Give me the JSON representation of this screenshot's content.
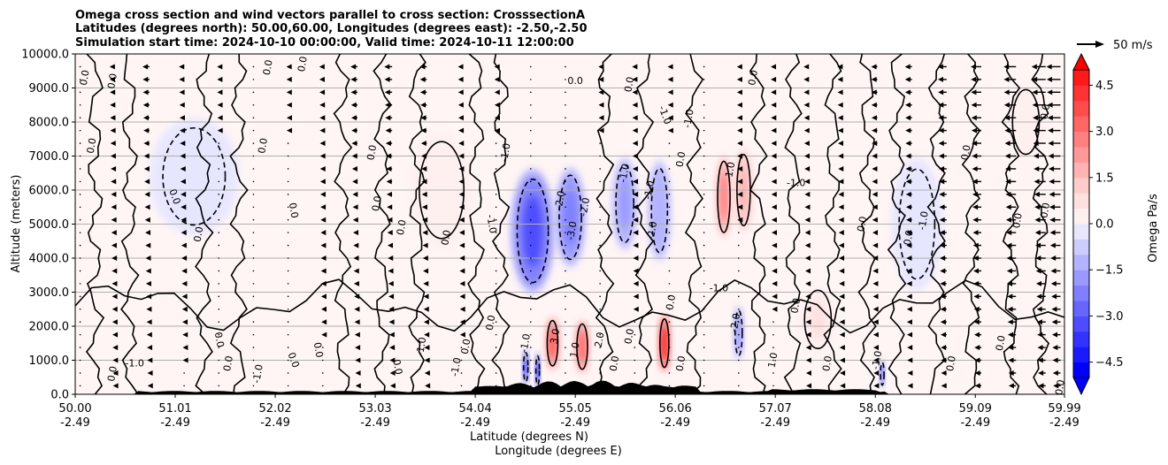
{
  "chart_data": {
    "type": "heatmap",
    "title_lines": [
      "Omega cross section and wind vectors parallel to cross section: CrosssectionA",
      "Latitudes (degrees north): 50.00,60.00, Longitudes (degrees east): -2.50,-2.50",
      "Simulation start time: 2024-10-10 00:00:00, Valid time: 2024-10-11 12:00:00"
    ],
    "ylabel": "Altitude (meters)",
    "xlabel_lat": "Latitude (degrees N)",
    "xlabel_lon": "Longitude (degrees E)",
    "ylim": [
      0,
      10000
    ],
    "xlim": [
      50.0,
      59.99
    ],
    "yticks": [
      {
        "value": 0,
        "label": "0.0"
      },
      {
        "value": 1000,
        "label": "1000.0"
      },
      {
        "value": 2000,
        "label": "2000.0"
      },
      {
        "value": 3000,
        "label": "3000.0"
      },
      {
        "value": 4000,
        "label": "4000.0"
      },
      {
        "value": 5000,
        "label": "5000.0"
      },
      {
        "value": 6000,
        "label": "6000.0"
      },
      {
        "value": 7000,
        "label": "7000.0"
      },
      {
        "value": 8000,
        "label": "8000.0"
      },
      {
        "value": 9000,
        "label": "9000.0"
      },
      {
        "value": 10000,
        "label": "10000.0"
      }
    ],
    "xticks": [
      {
        "value": 50.0,
        "lat": "50.00",
        "lon": "-2.49"
      },
      {
        "value": 51.01,
        "lat": "51.01",
        "lon": "-2.49"
      },
      {
        "value": 52.02,
        "lat": "52.02",
        "lon": "-2.49"
      },
      {
        "value": 53.03,
        "lat": "53.03",
        "lon": "-2.49"
      },
      {
        "value": 54.04,
        "lat": "54.04",
        "lon": "-2.49"
      },
      {
        "value": 55.05,
        "lat": "55.05",
        "lon": "-2.49"
      },
      {
        "value": 56.06,
        "lat": "56.06",
        "lon": "-2.49"
      },
      {
        "value": 57.07,
        "lat": "57.07",
        "lon": "-2.49"
      },
      {
        "value": 58.08,
        "lat": "58.08",
        "lon": "-2.49"
      },
      {
        "value": 59.09,
        "lat": "59.09",
        "lon": "-2.49"
      },
      {
        "value": 59.99,
        "lat": "59.99",
        "lon": "-2.49"
      }
    ],
    "colorbar": {
      "label": "Omega Pa/s",
      "range": [
        -5.0,
        5.0
      ],
      "ticks": [
        {
          "value": 4.5,
          "label": "4.5"
        },
        {
          "value": 3.0,
          "label": "3.0"
        },
        {
          "value": 1.5,
          "label": "1.5"
        },
        {
          "value": 0.0,
          "label": "0.0"
        },
        {
          "value": -1.5,
          "label": "−1.5"
        },
        {
          "value": -3.0,
          "label": "−3.0"
        },
        {
          "value": -4.5,
          "label": "−4.5"
        }
      ],
      "levels": [
        -5.0,
        -4.5,
        -4.0,
        -3.5,
        -3.0,
        -2.5,
        -2.0,
        -1.5,
        -1.0,
        -0.5,
        0.0,
        0.5,
        1.0,
        1.5,
        2.0,
        2.5,
        3.0,
        3.5,
        4.0,
        4.5,
        5.0
      ],
      "colors": [
        "#0000ff",
        "#1a1aff",
        "#3333ff",
        "#4d4dff",
        "#6666ff",
        "#8080ff",
        "#9999ff",
        "#b3b3ff",
        "#ccccff",
        "#e6e6ff",
        "#fff0f0",
        "#ffe0e0",
        "#ffcccc",
        "#ffb3b3",
        "#ff9999",
        "#ff8080",
        "#ff6666",
        "#ff4d4d",
        "#ff3333",
        "#ff1a1a"
      ],
      "extend_min_color": "#0000ff",
      "extend_max_color": "#ff0000"
    },
    "quiver_key": {
      "label": "50 m/s",
      "speed": 50
    },
    "omega_features": [
      {
        "lat": 54.62,
        "alt": 4800,
        "width": 0.35,
        "height": 3200,
        "value": -3.5
      },
      {
        "lat": 55.0,
        "alt": 5200,
        "width": 0.25,
        "height": 2600,
        "value": -2.5
      },
      {
        "lat": 55.55,
        "alt": 5600,
        "width": 0.2,
        "height": 2400,
        "value": -2.0
      },
      {
        "lat": 55.9,
        "alt": 5400,
        "width": 0.18,
        "height": 2600,
        "value": -1.5
      },
      {
        "lat": 56.55,
        "alt": 5800,
        "width": 0.14,
        "height": 2200,
        "value": 2.5
      },
      {
        "lat": 56.75,
        "alt": 6000,
        "width": 0.15,
        "height": 2200,
        "value": 1.8
      },
      {
        "lat": 54.82,
        "alt": 1500,
        "width": 0.12,
        "height": 1400,
        "value": 3.5
      },
      {
        "lat": 55.12,
        "alt": 1400,
        "width": 0.12,
        "height": 1400,
        "value": 3.0
      },
      {
        "lat": 55.95,
        "alt": 1500,
        "width": 0.1,
        "height": 1500,
        "value": 4.5
      },
      {
        "lat": 54.55,
        "alt": 800,
        "width": 0.05,
        "height": 900,
        "value": -4.0
      },
      {
        "lat": 54.67,
        "alt": 700,
        "width": 0.04,
        "height": 900,
        "value": -5.0
      },
      {
        "lat": 56.7,
        "alt": 1800,
        "width": 0.08,
        "height": 1400,
        "value": -2.0
      },
      {
        "lat": 58.15,
        "alt": 600,
        "width": 0.04,
        "height": 700,
        "value": -3.5
      },
      {
        "lat": 57.5,
        "alt": 2200,
        "width": 0.3,
        "height": 1800,
        "value": 0.6
      },
      {
        "lat": 51.2,
        "alt": 6400,
        "width": 0.7,
        "height": 3000,
        "value": -0.4
      },
      {
        "lat": 53.7,
        "alt": 6000,
        "width": 0.5,
        "height": 3000,
        "value": 0.4
      },
      {
        "lat": 58.5,
        "alt": 5000,
        "width": 0.4,
        "height": 3400,
        "value": -0.4
      },
      {
        "lat": 59.6,
        "alt": 8000,
        "width": 0.3,
        "height": 2000,
        "value": 0.4
      }
    ],
    "contour_labels": [
      {
        "text": "0.0",
        "lat": 50.1,
        "alt": 9300,
        "rot": -80
      },
      {
        "text": "0.0",
        "lat": 50.38,
        "alt": 9200,
        "rot": -80
      },
      {
        "text": "0.0",
        "lat": 50.17,
        "alt": 7300,
        "rot": -80
      },
      {
        "text": "0.0",
        "lat": 51.95,
        "alt": 9600,
        "rot": -80
      },
      {
        "text": "0.0",
        "lat": 52.3,
        "alt": 9700,
        "rot": -80
      },
      {
        "text": "0.0",
        "lat": 51.9,
        "alt": 7300,
        "rot": -80
      },
      {
        "text": "0.0",
        "lat": 53.0,
        "alt": 7100,
        "rot": -80
      },
      {
        "text": "0.0",
        "lat": 51.0,
        "alt": 5800,
        "rot": 70
      },
      {
        "text": "0.0",
        "lat": 53.05,
        "alt": 5600,
        "rot": -80
      },
      {
        "text": "0.0",
        "lat": 52.2,
        "alt": 5400,
        "rot": 80
      },
      {
        "text": "0.0",
        "lat": 53.3,
        "alt": 4900,
        "rot": -80
      },
      {
        "text": "0.0",
        "lat": 51.25,
        "alt": 4700,
        "rot": -80
      },
      {
        "text": "0.0",
        "lat": 53.75,
        "alt": 4600,
        "rot": -80
      },
      {
        "text": "0.0",
        "lat": 55.05,
        "alt": 9200,
        "rot": 0
      },
      {
        "text": "0.0",
        "lat": 55.6,
        "alt": 9100,
        "rot": -80
      },
      {
        "text": "-1.0",
        "lat": 55.95,
        "alt": 8200,
        "rot": 70
      },
      {
        "text": "-1.0",
        "lat": 54.35,
        "alt": 7100,
        "rot": -80
      },
      {
        "text": "-2.0",
        "lat": 54.9,
        "alt": 5700,
        "rot": -80
      },
      {
        "text": "-3.0",
        "lat": 55.02,
        "alt": 4800,
        "rot": -80
      },
      {
        "text": "-2.0",
        "lat": 55.15,
        "alt": 5500,
        "rot": -80
      },
      {
        "text": "-1.0",
        "lat": 54.2,
        "alt": 5000,
        "rot": 80
      },
      {
        "text": "-1.0",
        "lat": 55.55,
        "alt": 6500,
        "rot": -80
      },
      {
        "text": "-1.0",
        "lat": 55.8,
        "alt": 6000,
        "rot": -80
      },
      {
        "text": "-2.0",
        "lat": 55.83,
        "alt": 4800,
        "rot": -80
      },
      {
        "text": "-1.0",
        "lat": 56.2,
        "alt": 8100,
        "rot": -80
      },
      {
        "text": "0.0",
        "lat": 56.12,
        "alt": 6900,
        "rot": -80
      },
      {
        "text": "1.0",
        "lat": 56.62,
        "alt": 6600,
        "rot": -80
      },
      {
        "text": "0.0",
        "lat": 56.85,
        "alt": 9300,
        "rot": -80
      },
      {
        "text": "-1.0",
        "lat": 57.28,
        "alt": 6200,
        "rot": 0
      },
      {
        "text": "0.0",
        "lat": 57.95,
        "alt": 5000,
        "rot": -80
      },
      {
        "text": "0.0",
        "lat": 58.42,
        "alt": 4600,
        "rot": -80
      },
      {
        "text": "-1.0",
        "lat": 58.57,
        "alt": 5100,
        "rot": -80
      },
      {
        "text": "0.0",
        "lat": 59.0,
        "alt": 7100,
        "rot": -80
      },
      {
        "text": "0.0",
        "lat": 59.52,
        "alt": 5100,
        "rot": -80
      },
      {
        "text": "0.0",
        "lat": 59.8,
        "alt": 8300,
        "rot": -80
      },
      {
        "text": "0.0",
        "lat": 59.8,
        "alt": 5400,
        "rot": -80
      },
      {
        "text": "-1.0",
        "lat": 56.5,
        "alt": 3100,
        "rot": 0
      },
      {
        "text": "-2.0",
        "lat": 56.67,
        "alt": 2100,
        "rot": -80
      },
      {
        "text": "2.0",
        "lat": 55.3,
        "alt": 1600,
        "rot": -80
      },
      {
        "text": "1.0",
        "lat": 55.05,
        "alt": 1300,
        "rot": -80
      },
      {
        "text": "3.0",
        "lat": 54.85,
        "alt": 1700,
        "rot": -80
      },
      {
        "text": "0.0",
        "lat": 55.45,
        "alt": 900,
        "rot": -80
      },
      {
        "text": "0.0",
        "lat": 55.6,
        "alt": 1700,
        "rot": -80
      },
      {
        "text": "-1.0",
        "lat": 54.55,
        "alt": 1500,
        "rot": -80
      },
      {
        "text": "0.0",
        "lat": 53.95,
        "alt": 1400,
        "rot": -80
      },
      {
        "text": "-1.0",
        "lat": 53.5,
        "alt": 1400,
        "rot": -80
      },
      {
        "text": "-1.0",
        "lat": 53.85,
        "alt": 800,
        "rot": -80
      },
      {
        "text": "0.0",
        "lat": 53.25,
        "alt": 800,
        "rot": 80
      },
      {
        "text": "0.0",
        "lat": 52.45,
        "alt": 1300,
        "rot": 80
      },
      {
        "text": "0.0",
        "lat": 52.2,
        "alt": 1000,
        "rot": 70
      },
      {
        "text": "-1.0",
        "lat": 51.85,
        "alt": 600,
        "rot": -80
      },
      {
        "text": "0.0",
        "lat": 51.45,
        "alt": 1600,
        "rot": 80
      },
      {
        "text": "0.0",
        "lat": 51.55,
        "alt": 900,
        "rot": -80
      },
      {
        "text": "-1.0",
        "lat": 50.6,
        "alt": 900,
        "rot": 0
      },
      {
        "text": "0.0",
        "lat": 50.38,
        "alt": 600,
        "rot": -80
      },
      {
        "text": "0.0",
        "lat": 56.12,
        "alt": 900,
        "rot": -80
      },
      {
        "text": "1.0",
        "lat": 57.05,
        "alt": 1000,
        "rot": -80
      },
      {
        "text": "0.0",
        "lat": 57.6,
        "alt": 900,
        "rot": -80
      },
      {
        "text": "-1.0",
        "lat": 58.1,
        "alt": 1000,
        "rot": -80
      },
      {
        "text": "0.0",
        "lat": 58.85,
        "alt": 900,
        "rot": -80
      },
      {
        "text": "0.0",
        "lat": 59.35,
        "alt": 1500,
        "rot": -80
      },
      {
        "text": "0.0",
        "lat": 59.95,
        "alt": 200,
        "rot": -80
      },
      {
        "text": "0.0",
        "lat": 57.28,
        "alt": 2600,
        "rot": -80
      },
      {
        "text": "0.0",
        "lat": 56.02,
        "alt": 2700,
        "rot": -80
      },
      {
        "text": "0.0",
        "lat": 54.2,
        "alt": 2100,
        "rot": -80
      }
    ],
    "wind_profile": {
      "lats": [
        50.05,
        50.4,
        50.75,
        51.1,
        51.45,
        51.8,
        52.15,
        52.5,
        52.85,
        53.2,
        53.55,
        53.9,
        54.25,
        54.6,
        54.95,
        55.3,
        55.65,
        56.0,
        56.35,
        56.7,
        57.05,
        57.4,
        57.75,
        58.1,
        58.45,
        58.8,
        59.15,
        59.5,
        59.8,
        59.95
      ],
      "u_upper": [
        -1,
        -6,
        -8,
        -6,
        -2,
        -1,
        -2,
        -4,
        -8,
        -9,
        -8,
        -4,
        -2,
        -1,
        -1,
        -2,
        -3,
        -2,
        -1,
        -2,
        -3,
        -5,
        -6,
        -7,
        -8,
        -10,
        -12,
        -14,
        -16,
        -16
      ],
      "u_lower": [
        -1,
        -2,
        -2,
        -1,
        0,
        0,
        0,
        -1,
        -2,
        -2,
        -2,
        -1,
        0,
        0,
        0,
        0,
        -1,
        0,
        0,
        -1,
        -1,
        -2,
        -3,
        -4,
        -5,
        -6,
        -7,
        -8,
        -8,
        -8
      ]
    }
  }
}
